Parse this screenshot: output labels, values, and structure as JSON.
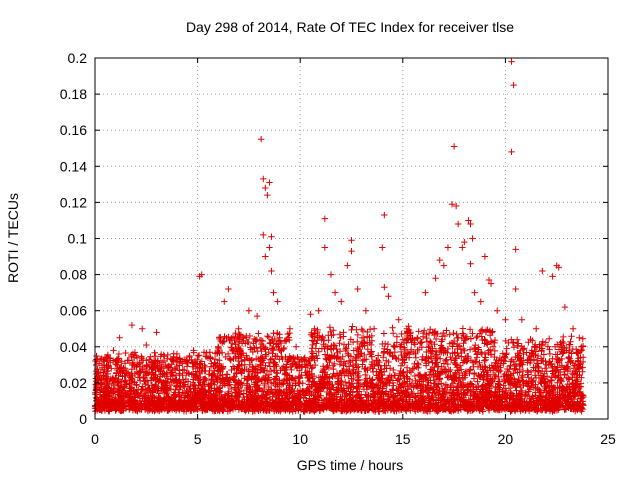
{
  "chart_data": {
    "type": "scatter",
    "title": "Day 298 of 2014, Rate Of TEC Index for receiver tlse",
    "xlabel": "GPS time / hours",
    "ylabel": "ROTI / TECUs",
    "xlim": [
      0,
      25
    ],
    "ylim": [
      0,
      0.2
    ],
    "xticks": [
      "0",
      "5",
      "10",
      "15",
      "20",
      "25"
    ],
    "yticks": [
      "0",
      "0.02",
      "0.04",
      "0.06",
      "0.08",
      "0.1",
      "0.12",
      "0.14",
      "0.16",
      "0.18",
      "0.2"
    ],
    "grid": true,
    "marker": "plus",
    "color": "#e00000",
    "series": [
      {
        "name": "ROTI",
        "points": [
          [
            0.1,
            0.025
          ],
          [
            0.3,
            0.012
          ],
          [
            0.6,
            0.02
          ],
          [
            0.9,
            0.038
          ],
          [
            1.2,
            0.045
          ],
          [
            1.3,
            0.032
          ],
          [
            1.8,
            0.052
          ],
          [
            2.3,
            0.05
          ],
          [
            2.5,
            0.041
          ],
          [
            3.0,
            0.048
          ],
          [
            3.5,
            0.025
          ],
          [
            4.0,
            0.02
          ],
          [
            4.6,
            0.035
          ],
          [
            4.8,
            0.038
          ],
          [
            5.1,
            0.079
          ],
          [
            5.2,
            0.08
          ],
          [
            5.6,
            0.037
          ],
          [
            6.0,
            0.04
          ],
          [
            6.3,
            0.065
          ],
          [
            6.5,
            0.072
          ],
          [
            7.0,
            0.05
          ],
          [
            7.5,
            0.06
          ],
          [
            7.9,
            0.057
          ],
          [
            8.1,
            0.155
          ],
          [
            8.2,
            0.133
          ],
          [
            8.3,
            0.128
          ],
          [
            8.4,
            0.124
          ],
          [
            8.5,
            0.131
          ],
          [
            8.6,
            0.101
          ],
          [
            8.2,
            0.102
          ],
          [
            8.3,
            0.09
          ],
          [
            8.5,
            0.095
          ],
          [
            8.6,
            0.082
          ],
          [
            8.7,
            0.07
          ],
          [
            8.9,
            0.065
          ],
          [
            9.0,
            0.045
          ],
          [
            9.5,
            0.05
          ],
          [
            9.8,
            0.04
          ],
          [
            10.5,
            0.058
          ],
          [
            10.9,
            0.06
          ],
          [
            11.2,
            0.111
          ],
          [
            11.2,
            0.095
          ],
          [
            11.5,
            0.08
          ],
          [
            11.7,
            0.07
          ],
          [
            12.0,
            0.065
          ],
          [
            12.3,
            0.085
          ],
          [
            12.5,
            0.099
          ],
          [
            12.5,
            0.093
          ],
          [
            12.8,
            0.072
          ],
          [
            13.2,
            0.06
          ],
          [
            13.6,
            0.05
          ],
          [
            14.1,
            0.113
          ],
          [
            14.0,
            0.095
          ],
          [
            14.1,
            0.073
          ],
          [
            14.3,
            0.068
          ],
          [
            14.8,
            0.055
          ],
          [
            15.2,
            0.05
          ],
          [
            15.7,
            0.045
          ],
          [
            16.1,
            0.07
          ],
          [
            16.6,
            0.078
          ],
          [
            16.8,
            0.088
          ],
          [
            17.0,
            0.085
          ],
          [
            17.2,
            0.095
          ],
          [
            17.4,
            0.119
          ],
          [
            17.5,
            0.151
          ],
          [
            17.6,
            0.118
          ],
          [
            17.7,
            0.108
          ],
          [
            17.9,
            0.095
          ],
          [
            18.0,
            0.098
          ],
          [
            18.2,
            0.11
          ],
          [
            18.3,
            0.108
          ],
          [
            18.4,
            0.1
          ],
          [
            18.3,
            0.086
          ],
          [
            18.5,
            0.07
          ],
          [
            18.8,
            0.065
          ],
          [
            19.0,
            0.09
          ],
          [
            19.2,
            0.077
          ],
          [
            19.3,
            0.075
          ],
          [
            19.6,
            0.06
          ],
          [
            20.0,
            0.055
          ],
          [
            20.3,
            0.198
          ],
          [
            20.4,
            0.185
          ],
          [
            20.3,
            0.148
          ],
          [
            20.5,
            0.094
          ],
          [
            20.5,
            0.072
          ],
          [
            20.8,
            0.055
          ],
          [
            21.5,
            0.05
          ],
          [
            21.8,
            0.082
          ],
          [
            22.3,
            0.079
          ],
          [
            22.5,
            0.085
          ],
          [
            22.6,
            0.084
          ],
          [
            22.9,
            0.062
          ],
          [
            23.3,
            0.05
          ],
          [
            23.6,
            0.045
          ],
          [
            23.7,
            0.04
          ]
        ]
      }
    ],
    "noise_band": {
      "x_start": 0,
      "x_end": 23.8,
      "y_floor": 0.004,
      "y_typical_max": 0.03
    }
  }
}
